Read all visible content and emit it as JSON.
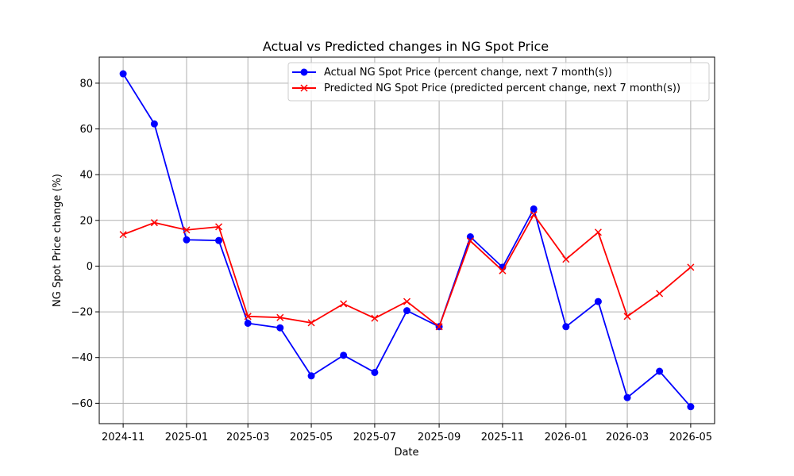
{
  "chart_data": {
    "type": "line",
    "title": "Actual vs Predicted changes in NG Spot Price",
    "xlabel": "Date",
    "ylabel": "NG Spot Price change (%)",
    "x": [
      "2024-11-01",
      "2024-12-01",
      "2025-01-01",
      "2025-02-01",
      "2025-03-01",
      "2025-04-01",
      "2025-05-01",
      "2025-06-01",
      "2025-07-01",
      "2025-08-01",
      "2025-09-01",
      "2025-10-01",
      "2025-11-01",
      "2025-12-01",
      "2026-01-01",
      "2026-02-01",
      "2026-03-01",
      "2026-04-01",
      "2026-05-01"
    ],
    "x_ticks": [
      "2024-11",
      "2025-01",
      "2025-03",
      "2025-05",
      "2025-07",
      "2025-09",
      "2025-11",
      "2026-01",
      "2026-03",
      "2026-05"
    ],
    "y_ticks": [
      80,
      60,
      40,
      20,
      0,
      -20,
      -40,
      -60
    ],
    "ylim": [
      -68.9,
      91.4
    ],
    "xlim": [
      "2024-10-09",
      "2026-05-24"
    ],
    "grid": true,
    "legend_position": "upper right",
    "series": [
      {
        "name": "Actual NG Spot Price (percent change, next 7 month(s))",
        "color": "#0000ff",
        "marker": "circle",
        "values": [
          84.1,
          62.2,
          11.5,
          11.2,
          -25.0,
          -27.0,
          -48.0,
          -39.0,
          -46.5,
          -19.5,
          -26.5,
          12.8,
          -0.5,
          25.0,
          -26.5,
          -15.5,
          -57.5,
          -46.0,
          -61.5
        ]
      },
      {
        "name": "Predicted NG Spot Price (predicted percent change, next 7 month(s))",
        "color": "#ff0000",
        "marker": "x",
        "values": [
          13.8,
          19.0,
          15.8,
          17.2,
          -22.0,
          -22.5,
          -24.8,
          -16.5,
          -22.8,
          -15.5,
          -26.5,
          11.0,
          -2.0,
          22.5,
          3.0,
          14.8,
          -22.0,
          -12.0,
          -0.5
        ]
      }
    ]
  }
}
